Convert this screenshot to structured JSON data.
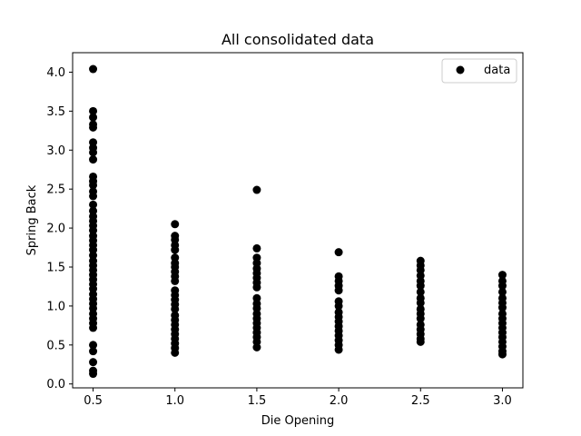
{
  "chart_data": {
    "type": "scatter",
    "title": "All consolidated data",
    "xlabel": "Die Opening",
    "ylabel": "Spring Back",
    "xlim": [
      0.375,
      3.125
    ],
    "ylim": [
      -0.05,
      4.25
    ],
    "xticks": [
      "0.5",
      "1.0",
      "1.5",
      "2.0",
      "2.5",
      "3.0"
    ],
    "yticks": [
      "0.0",
      "0.5",
      "1.0",
      "1.5",
      "2.0",
      "2.5",
      "3.0",
      "3.5",
      "4.0"
    ],
    "grid": false,
    "legend_position": "top-right",
    "series": [
      {
        "name": "data",
        "color": "#000000",
        "points": [
          [
            0.5,
            4.04
          ],
          [
            0.5,
            3.5
          ],
          [
            0.5,
            3.42
          ],
          [
            0.5,
            3.33
          ],
          [
            0.5,
            3.29
          ],
          [
            0.5,
            3.1
          ],
          [
            0.5,
            3.03
          ],
          [
            0.5,
            2.97
          ],
          [
            0.5,
            2.88
          ],
          [
            0.5,
            2.66
          ],
          [
            0.5,
            2.6
          ],
          [
            0.5,
            2.55
          ],
          [
            0.5,
            2.47
          ],
          [
            0.5,
            2.41
          ],
          [
            0.5,
            2.3
          ],
          [
            0.5,
            2.22
          ],
          [
            0.5,
            2.15
          ],
          [
            0.5,
            2.09
          ],
          [
            0.5,
            2.03
          ],
          [
            0.5,
            1.97
          ],
          [
            0.5,
            1.9
          ],
          [
            0.5,
            1.84
          ],
          [
            0.5,
            1.78
          ],
          [
            0.5,
            1.72
          ],
          [
            0.5,
            1.65
          ],
          [
            0.5,
            1.58
          ],
          [
            0.5,
            1.52
          ],
          [
            0.5,
            1.46
          ],
          [
            0.5,
            1.4
          ],
          [
            0.5,
            1.34
          ],
          [
            0.5,
            1.28
          ],
          [
            0.5,
            1.22
          ],
          [
            0.5,
            1.15
          ],
          [
            0.5,
            1.09
          ],
          [
            0.5,
            1.03
          ],
          [
            0.5,
            0.97
          ],
          [
            0.5,
            0.9
          ],
          [
            0.5,
            0.84
          ],
          [
            0.5,
            0.78
          ],
          [
            0.5,
            0.72
          ],
          [
            0.5,
            0.5
          ],
          [
            0.5,
            0.42
          ],
          [
            0.5,
            0.28
          ],
          [
            0.5,
            0.17
          ],
          [
            0.5,
            0.13
          ],
          [
            1.0,
            2.05
          ],
          [
            1.0,
            1.9
          ],
          [
            1.0,
            1.85
          ],
          [
            1.0,
            1.78
          ],
          [
            1.0,
            1.72
          ],
          [
            1.0,
            1.62
          ],
          [
            1.0,
            1.55
          ],
          [
            1.0,
            1.5
          ],
          [
            1.0,
            1.44
          ],
          [
            1.0,
            1.38
          ],
          [
            1.0,
            1.32
          ],
          [
            1.0,
            1.2
          ],
          [
            1.0,
            1.14
          ],
          [
            1.0,
            1.08
          ],
          [
            1.0,
            1.02
          ],
          [
            1.0,
            0.96
          ],
          [
            1.0,
            0.88
          ],
          [
            1.0,
            0.82
          ],
          [
            1.0,
            0.76
          ],
          [
            1.0,
            0.7
          ],
          [
            1.0,
            0.64
          ],
          [
            1.0,
            0.58
          ],
          [
            1.0,
            0.52
          ],
          [
            1.0,
            0.46
          ],
          [
            1.0,
            0.4
          ],
          [
            1.5,
            2.49
          ],
          [
            1.5,
            1.74
          ],
          [
            1.5,
            1.62
          ],
          [
            1.5,
            1.55
          ],
          [
            1.5,
            1.48
          ],
          [
            1.5,
            1.42
          ],
          [
            1.5,
            1.36
          ],
          [
            1.5,
            1.3
          ],
          [
            1.5,
            1.24
          ],
          [
            1.5,
            1.1
          ],
          [
            1.5,
            1.03
          ],
          [
            1.5,
            0.97
          ],
          [
            1.5,
            0.9
          ],
          [
            1.5,
            0.84
          ],
          [
            1.5,
            0.78
          ],
          [
            1.5,
            0.72
          ],
          [
            1.5,
            0.66
          ],
          [
            1.5,
            0.6
          ],
          [
            1.5,
            0.54
          ],
          [
            1.5,
            0.47
          ],
          [
            2.0,
            1.69
          ],
          [
            2.0,
            1.38
          ],
          [
            2.0,
            1.32
          ],
          [
            2.0,
            1.26
          ],
          [
            2.0,
            1.2
          ],
          [
            2.0,
            1.06
          ],
          [
            2.0,
            1.0
          ],
          [
            2.0,
            0.92
          ],
          [
            2.0,
            0.86
          ],
          [
            2.0,
            0.8
          ],
          [
            2.0,
            0.74
          ],
          [
            2.0,
            0.68
          ],
          [
            2.0,
            0.62
          ],
          [
            2.0,
            0.56
          ],
          [
            2.0,
            0.5
          ],
          [
            2.0,
            0.44
          ],
          [
            2.5,
            1.58
          ],
          [
            2.5,
            1.52
          ],
          [
            2.5,
            1.46
          ],
          [
            2.5,
            1.39
          ],
          [
            2.5,
            1.32
          ],
          [
            2.5,
            1.26
          ],
          [
            2.5,
            1.18
          ],
          [
            2.5,
            1.1
          ],
          [
            2.5,
            1.04
          ],
          [
            2.5,
            0.96
          ],
          [
            2.5,
            0.9
          ],
          [
            2.5,
            0.84
          ],
          [
            2.5,
            0.76
          ],
          [
            2.5,
            0.7
          ],
          [
            2.5,
            0.64
          ],
          [
            2.5,
            0.58
          ],
          [
            2.5,
            0.54
          ],
          [
            3.0,
            1.4
          ],
          [
            3.0,
            1.32
          ],
          [
            3.0,
            1.26
          ],
          [
            3.0,
            1.18
          ],
          [
            3.0,
            1.1
          ],
          [
            3.0,
            1.04
          ],
          [
            3.0,
            0.98
          ],
          [
            3.0,
            0.9
          ],
          [
            3.0,
            0.84
          ],
          [
            3.0,
            0.78
          ],
          [
            3.0,
            0.72
          ],
          [
            3.0,
            0.66
          ],
          [
            3.0,
            0.6
          ],
          [
            3.0,
            0.54
          ],
          [
            3.0,
            0.48
          ],
          [
            3.0,
            0.42
          ],
          [
            3.0,
            0.38
          ]
        ]
      }
    ]
  }
}
